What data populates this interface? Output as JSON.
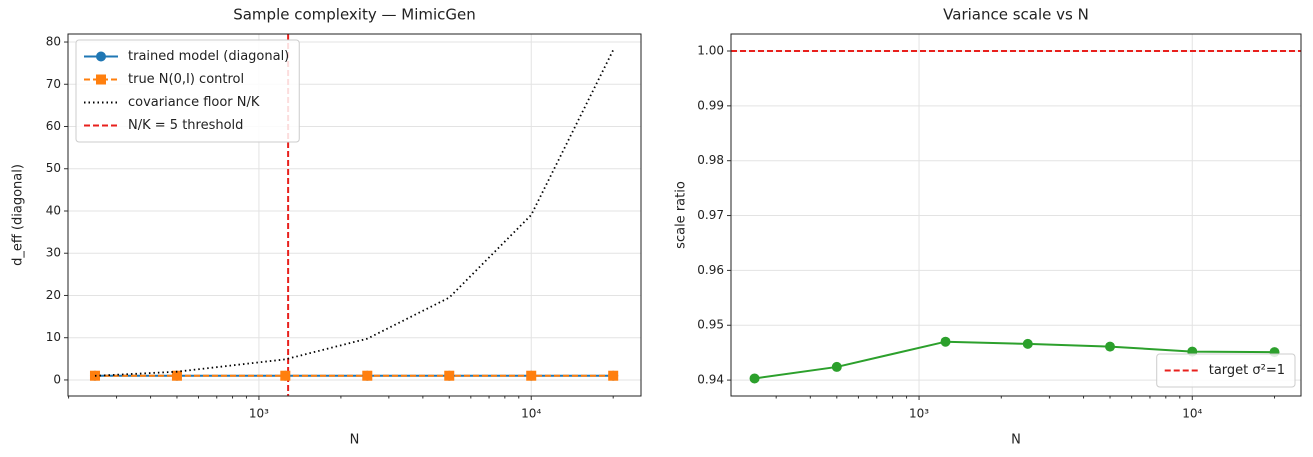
{
  "chart_data": [
    {
      "type": "line",
      "title": "Sample complexity — MimicGen",
      "xlabel": "N",
      "ylabel": "d_eff (diagonal)",
      "xscale": "log",
      "grid": true,
      "legend": "upper left",
      "x": [
        250,
        500,
        1250,
        2500,
        5000,
        10000,
        20000
      ],
      "xlim": [
        199,
        25300
      ],
      "xticks": [
        {
          "value": 1000,
          "label": "10³"
        },
        {
          "value": 10000,
          "label": "10⁴"
        }
      ],
      "ylim": [
        -3.8,
        81.9
      ],
      "yticks": [
        0,
        10,
        20,
        30,
        40,
        50,
        60,
        70,
        80
      ],
      "series": [
        {
          "name": "trained model (diagonal)",
          "color": "#1f77b4",
          "linestyle": "solid",
          "marker": "circle",
          "values": [
            1.0,
            1.0,
            1.0,
            1.0,
            1.0,
            1.0,
            1.0
          ]
        },
        {
          "name": "true N(0,I) control",
          "color": "#ff7f0e",
          "linestyle": "dashed",
          "marker": "square",
          "values": [
            1.0,
            1.0,
            1.0,
            1.0,
            1.0,
            1.0,
            1.0
          ]
        },
        {
          "name": "covariance floor N/K",
          "color": "#000000",
          "linestyle": "dotted",
          "values": [
            0.977,
            1.95,
            4.88,
            9.77,
            19.5,
            39.06,
            78.1
          ]
        }
      ],
      "vline": {
        "name": "N/K = 5 threshold",
        "x": 1280,
        "color": "#e8201c"
      }
    },
    {
      "type": "line",
      "title": "Variance scale vs N",
      "xlabel": "N",
      "ylabel": "scale ratio",
      "xscale": "log",
      "grid": true,
      "legend": "lower right",
      "x": [
        250,
        500,
        1250,
        2500,
        5000,
        10000,
        20000
      ],
      "xlim": [
        205,
        25000
      ],
      "xticks": [
        {
          "value": 1000,
          "label": "10³"
        },
        {
          "value": 10000,
          "label": "10⁴"
        }
      ],
      "ylim": [
        0.9371,
        1.0031
      ],
      "yticks": [
        0.94,
        0.95,
        0.96,
        0.97,
        0.98,
        0.99,
        {
          "value": 1,
          "label": "1.00"
        }
      ],
      "series": [
        {
          "color": "#2ca02c",
          "linestyle": "solid",
          "marker": "circle",
          "values": [
            0.9403,
            0.9424,
            0.947,
            0.9466,
            0.9461,
            0.9452,
            0.9451
          ]
        }
      ],
      "hline": {
        "name": "target σ²=1",
        "y": 1,
        "color": "#e8201c"
      }
    }
  ]
}
